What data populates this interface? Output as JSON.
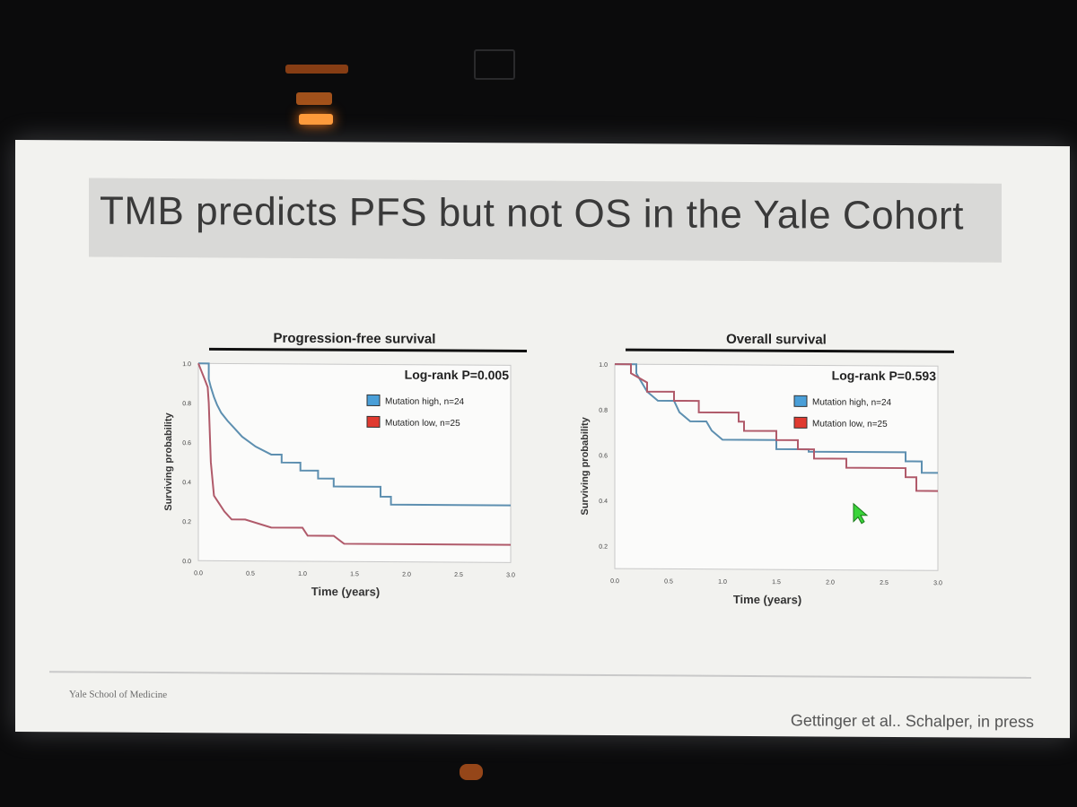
{
  "slide": {
    "title": "TMB predicts PFS but not OS in the Yale Cohort",
    "footer_left": "Yale School of Medicine",
    "footer_right": "Gettinger et al.. Schalper, in press"
  },
  "colors": {
    "mutation_high": "#5d8fb0",
    "mutation_low": "#b05a6a",
    "legend_high_box": "#4a9fd8",
    "legend_low_box": "#e03a30"
  },
  "chart_data": [
    {
      "type": "line",
      "step": true,
      "title": "Progression-free survival",
      "xlabel": "Time (years)",
      "ylabel": "Surviving probability",
      "xlim": [
        0,
        3
      ],
      "ylim": [
        0,
        1
      ],
      "x_ticks": [
        "0.0",
        "0.5",
        "1.0",
        "1.5",
        "2.0",
        "2.5",
        "3.0"
      ],
      "y_ticks": [
        "0.0",
        "0.2",
        "0.4",
        "0.6",
        "0.8",
        "1.0"
      ],
      "annotation": "Log-rank P=0.005",
      "legend_position": "top-right",
      "series": [
        {
          "name": "Mutation high, n=24",
          "points": [
            [
              0,
              1.0
            ],
            [
              0.1,
              1.0
            ],
            [
              0.1,
              0.92
            ],
            [
              0.12,
              0.88
            ],
            [
              0.15,
              0.83
            ],
            [
              0.18,
              0.79
            ],
            [
              0.22,
              0.75
            ],
            [
              0.28,
              0.71
            ],
            [
              0.35,
              0.67
            ],
            [
              0.42,
              0.63
            ],
            [
              0.55,
              0.58
            ],
            [
              0.7,
              0.54
            ],
            [
              0.8,
              0.54
            ],
            [
              0.8,
              0.5
            ],
            [
              0.98,
              0.5
            ],
            [
              0.98,
              0.46
            ],
            [
              1.15,
              0.46
            ],
            [
              1.15,
              0.42
            ],
            [
              1.3,
              0.42
            ],
            [
              1.3,
              0.38
            ],
            [
              1.75,
              0.38
            ],
            [
              1.75,
              0.33
            ],
            [
              1.85,
              0.33
            ],
            [
              1.85,
              0.29
            ],
            [
              3.0,
              0.29
            ]
          ]
        },
        {
          "name": "Mutation low, n=25",
          "points": [
            [
              0,
              1.0
            ],
            [
              0.03,
              0.96
            ],
            [
              0.06,
              0.92
            ],
            [
              0.09,
              0.88
            ],
            [
              0.1,
              0.8
            ],
            [
              0.12,
              0.5
            ],
            [
              0.15,
              0.33
            ],
            [
              0.2,
              0.29
            ],
            [
              0.25,
              0.25
            ],
            [
              0.32,
              0.21
            ],
            [
              0.45,
              0.21
            ],
            [
              0.7,
              0.17
            ],
            [
              1.0,
              0.17
            ],
            [
              1.05,
              0.13
            ],
            [
              1.3,
              0.13
            ],
            [
              1.4,
              0.09
            ],
            [
              3.0,
              0.09
            ]
          ]
        }
      ]
    },
    {
      "type": "line",
      "step": true,
      "title": "Overall survival",
      "xlabel": "Time (years)",
      "ylabel": "Surviving probability",
      "xlim": [
        0,
        3
      ],
      "ylim": [
        0.1,
        1
      ],
      "x_ticks": [
        "0.0",
        "0.5",
        "1.0",
        "1.5",
        "2.0",
        "2.5",
        "3.0"
      ],
      "y_ticks": [
        "0.2",
        "0.4",
        "0.6",
        "0.8",
        "1.0"
      ],
      "annotation": "Log-rank P=0.593",
      "legend_position": "top-right",
      "series": [
        {
          "name": "Mutation high, n=24",
          "points": [
            [
              0,
              1.0
            ],
            [
              0.2,
              1.0
            ],
            [
              0.2,
              0.96
            ],
            [
              0.25,
              0.92
            ],
            [
              0.3,
              0.88
            ],
            [
              0.4,
              0.84
            ],
            [
              0.55,
              0.84
            ],
            [
              0.6,
              0.79
            ],
            [
              0.7,
              0.75
            ],
            [
              0.85,
              0.75
            ],
            [
              0.9,
              0.71
            ],
            [
              1.0,
              0.67
            ],
            [
              1.5,
              0.67
            ],
            [
              1.5,
              0.63
            ],
            [
              1.8,
              0.63
            ],
            [
              1.8,
              0.62
            ],
            [
              2.7,
              0.62
            ],
            [
              2.7,
              0.58
            ],
            [
              2.85,
              0.58
            ],
            [
              2.85,
              0.53
            ],
            [
              3.0,
              0.53
            ]
          ]
        },
        {
          "name": "Mutation low, n=25",
          "points": [
            [
              0,
              1.0
            ],
            [
              0.15,
              1.0
            ],
            [
              0.15,
              0.96
            ],
            [
              0.3,
              0.92
            ],
            [
              0.3,
              0.88
            ],
            [
              0.55,
              0.88
            ],
            [
              0.55,
              0.84
            ],
            [
              0.78,
              0.84
            ],
            [
              0.78,
              0.79
            ],
            [
              1.15,
              0.79
            ],
            [
              1.15,
              0.75
            ],
            [
              1.2,
              0.75
            ],
            [
              1.2,
              0.71
            ],
            [
              1.5,
              0.71
            ],
            [
              1.5,
              0.67
            ],
            [
              1.7,
              0.67
            ],
            [
              1.7,
              0.63
            ],
            [
              1.85,
              0.63
            ],
            [
              1.85,
              0.59
            ],
            [
              2.15,
              0.59
            ],
            [
              2.15,
              0.55
            ],
            [
              2.7,
              0.55
            ],
            [
              2.7,
              0.51
            ],
            [
              2.8,
              0.51
            ],
            [
              2.8,
              0.45
            ],
            [
              3.0,
              0.45
            ]
          ]
        }
      ]
    }
  ]
}
